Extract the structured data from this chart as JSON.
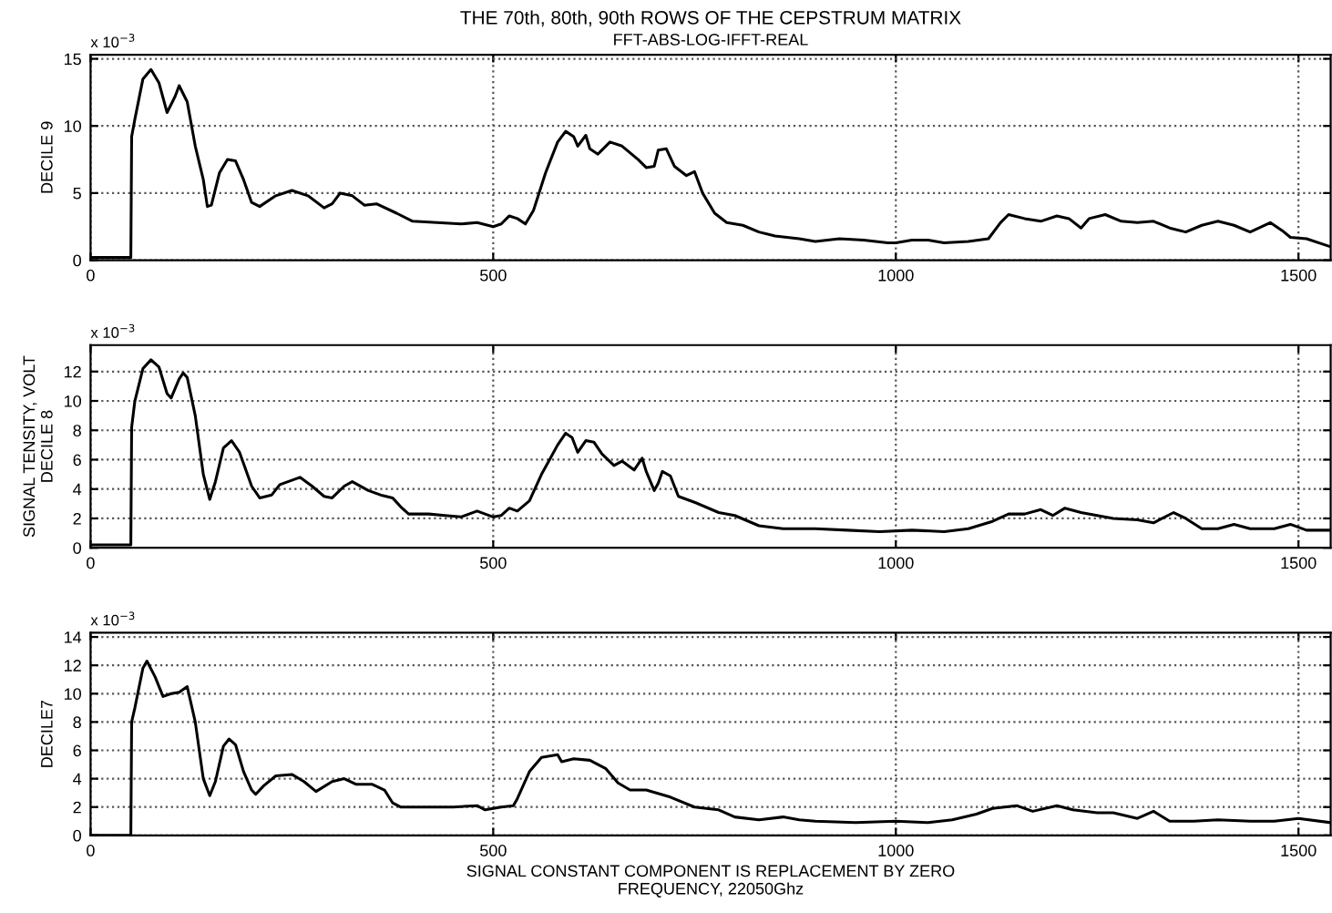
{
  "chart_data": [
    {
      "type": "line",
      "title": "THE 70th, 80th, 90th ROWS OF THE CEPSTRUM MATRIX",
      "subtitle": "FFT-ABS-LOG-IFFT-REAL",
      "ylabel": "DECILE 9",
      "annotations": [
        "x 10$^{−3}$"
      ],
      "xlim": [
        0,
        1540
      ],
      "xticks": [
        0,
        500,
        1000,
        1500
      ],
      "ylim": [
        0,
        15.3
      ],
      "yticks": [
        0,
        5,
        10,
        15
      ],
      "grid": true,
      "line_style": "solid",
      "series": [
        {
          "color": "#000000",
          "x": [
            0,
            50,
            51,
            55,
            65,
            75,
            85,
            95,
            105,
            110,
            120,
            130,
            140,
            145,
            150,
            160,
            170,
            180,
            190,
            200,
            210,
            230,
            250,
            270,
            290,
            300,
            310,
            325,
            340,
            355,
            380,
            400,
            430,
            460,
            480,
            500,
            510,
            520,
            530,
            540,
            550,
            565,
            580,
            590,
            600,
            605,
            615,
            620,
            630,
            645,
            660,
            680,
            690,
            700,
            705,
            715,
            725,
            740,
            750,
            760,
            775,
            790,
            810,
            830,
            850,
            880,
            900,
            930,
            960,
            990,
            1000,
            1020,
            1040,
            1060,
            1090,
            1115,
            1130,
            1140,
            1160,
            1180,
            1200,
            1215,
            1230,
            1240,
            1260,
            1280,
            1300,
            1320,
            1340,
            1360,
            1380,
            1400,
            1420,
            1440,
            1465,
            1480,
            1490,
            1510,
            1540
          ],
          "values": [
            0.2,
            0.2,
            9.2,
            10.5,
            13.5,
            14.2,
            13.2,
            11.0,
            12.2,
            13.0,
            11.8,
            8.5,
            6.0,
            4.0,
            4.1,
            6.5,
            7.5,
            7.4,
            6.0,
            4.3,
            4.0,
            4.8,
            5.2,
            4.8,
            3.9,
            4.2,
            5.0,
            4.8,
            4.1,
            4.2,
            3.5,
            2.9,
            2.8,
            2.7,
            2.8,
            2.5,
            2.7,
            3.3,
            3.1,
            2.7,
            3.7,
            6.5,
            8.8,
            9.6,
            9.2,
            8.5,
            9.3,
            8.3,
            7.9,
            8.8,
            8.5,
            7.5,
            6.9,
            7.0,
            8.2,
            8.3,
            7.0,
            6.3,
            6.6,
            5.0,
            3.5,
            2.8,
            2.6,
            2.1,
            1.8,
            1.6,
            1.4,
            1.6,
            1.5,
            1.3,
            1.3,
            1.5,
            1.5,
            1.3,
            1.4,
            1.6,
            2.8,
            3.4,
            3.1,
            2.9,
            3.3,
            3.1,
            2.4,
            3.1,
            3.4,
            2.9,
            2.8,
            2.9,
            2.4,
            2.1,
            2.6,
            2.9,
            2.6,
            2.1,
            2.8,
            2.2,
            1.7,
            1.6,
            1.0
          ]
        }
      ]
    },
    {
      "type": "line",
      "ylabel": "SIGNAL TENSITY, VOLT\nDECILE 8",
      "annotations": [
        "x 10$^{−3}$"
      ],
      "xlim": [
        0,
        1540
      ],
      "xticks": [
        0,
        500,
        1000,
        1500
      ],
      "ylim": [
        0,
        13.8
      ],
      "yticks": [
        0,
        2,
        4,
        6,
        8,
        10,
        12
      ],
      "grid": true,
      "line_style": "solid",
      "series": [
        {
          "color": "#000000",
          "x": [
            0,
            50,
            51,
            55,
            65,
            75,
            85,
            95,
            100,
            110,
            115,
            120,
            130,
            140,
            148,
            155,
            165,
            175,
            185,
            200,
            210,
            225,
            235,
            260,
            275,
            290,
            300,
            315,
            325,
            345,
            360,
            375,
            385,
            395,
            420,
            440,
            460,
            480,
            500,
            510,
            520,
            530,
            545,
            560,
            580,
            590,
            598,
            605,
            615,
            625,
            635,
            650,
            660,
            675,
            685,
            690,
            700,
            705,
            710,
            720,
            730,
            750,
            780,
            800,
            830,
            860,
            900,
            940,
            980,
            1020,
            1060,
            1090,
            1120,
            1140,
            1160,
            1180,
            1195,
            1210,
            1230,
            1250,
            1270,
            1300,
            1320,
            1345,
            1360,
            1380,
            1400,
            1420,
            1440,
            1470,
            1490,
            1510,
            1540
          ],
          "values": [
            0.2,
            0.2,
            8.2,
            10,
            12.2,
            12.8,
            12.3,
            10.5,
            10.2,
            11.5,
            11.9,
            11.6,
            9,
            5,
            3.3,
            4.5,
            6.8,
            7.3,
            6.5,
            4.2,
            3.4,
            3.6,
            4.3,
            4.8,
            4.2,
            3.5,
            3.4,
            4.2,
            4.5,
            3.9,
            3.6,
            3.4,
            2.8,
            2.3,
            2.3,
            2.2,
            2.1,
            2.5,
            2.1,
            2.2,
            2.7,
            2.5,
            3.2,
            5,
            7,
            7.8,
            7.5,
            6.5,
            7.3,
            7.2,
            6.4,
            5.6,
            5.9,
            5.3,
            6.1,
            5.2,
            3.9,
            4.4,
            5.2,
            4.9,
            3.5,
            3.1,
            2.4,
            2.2,
            1.5,
            1.3,
            1.3,
            1.2,
            1.1,
            1.2,
            1.1,
            1.3,
            1.8,
            2.3,
            2.3,
            2.6,
            2.2,
            2.7,
            2.4,
            2.2,
            2.0,
            1.9,
            1.7,
            2.4,
            2.0,
            1.3,
            1.3,
            1.6,
            1.3,
            1.3,
            1.6,
            1.2,
            1.2
          ]
        }
      ]
    },
    {
      "type": "line",
      "ylabel": "DECILE7",
      "xlabel": "SIGNAL CONSTANT COMPONENT IS REPLACEMENT BY ZERO\nFREQUENCY, 22050Ghz",
      "annotations": [
        "x 10$^{−3}$"
      ],
      "xlim": [
        0,
        1540
      ],
      "xticks": [
        0,
        500,
        1000,
        1500
      ],
      "ylim": [
        0,
        14.3
      ],
      "yticks": [
        0,
        2,
        4,
        6,
        8,
        10,
        12,
        14
      ],
      "grid": true,
      "line_style": "solid",
      "series": [
        {
          "color": "#000000",
          "x": [
            0,
            50,
            51,
            55,
            65,
            70,
            80,
            90,
            100,
            110,
            120,
            130,
            140,
            148,
            155,
            165,
            172,
            180,
            190,
            200,
            205,
            215,
            230,
            250,
            265,
            280,
            300,
            315,
            330,
            350,
            365,
            375,
            385,
            420,
            450,
            480,
            490,
            510,
            525,
            530,
            545,
            560,
            580,
            585,
            600,
            620,
            640,
            655,
            670,
            690,
            720,
            750,
            780,
            800,
            830,
            860,
            880,
            900,
            950,
            1000,
            1040,
            1070,
            1100,
            1120,
            1150,
            1170,
            1200,
            1220,
            1250,
            1270,
            1300,
            1320,
            1340,
            1370,
            1400,
            1440,
            1470,
            1500,
            1540
          ],
          "values": [
            0,
            0,
            8,
            9,
            11.8,
            12.3,
            11.2,
            9.8,
            10.0,
            10.1,
            10.5,
            8,
            4,
            2.8,
            3.8,
            6.3,
            6.8,
            6.4,
            4.5,
            3.2,
            2.9,
            3.5,
            4.2,
            4.3,
            3.8,
            3.1,
            3.8,
            4.0,
            3.6,
            3.6,
            3.2,
            2.3,
            2,
            2,
            2.0,
            2.1,
            1.8,
            2.0,
            2.1,
            2.6,
            4.5,
            5.5,
            5.7,
            5.2,
            5.4,
            5.3,
            4.7,
            3.7,
            3.2,
            3.2,
            2.7,
            2.0,
            1.8,
            1.3,
            1.1,
            1.3,
            1.1,
            1.0,
            0.9,
            1.0,
            0.9,
            1.1,
            1.5,
            1.9,
            2.1,
            1.7,
            2.1,
            1.8,
            1.6,
            1.6,
            1.2,
            1.7,
            1.0,
            1.0,
            1.1,
            1.0,
            1.0,
            1.2,
            0.9
          ]
        }
      ]
    }
  ]
}
